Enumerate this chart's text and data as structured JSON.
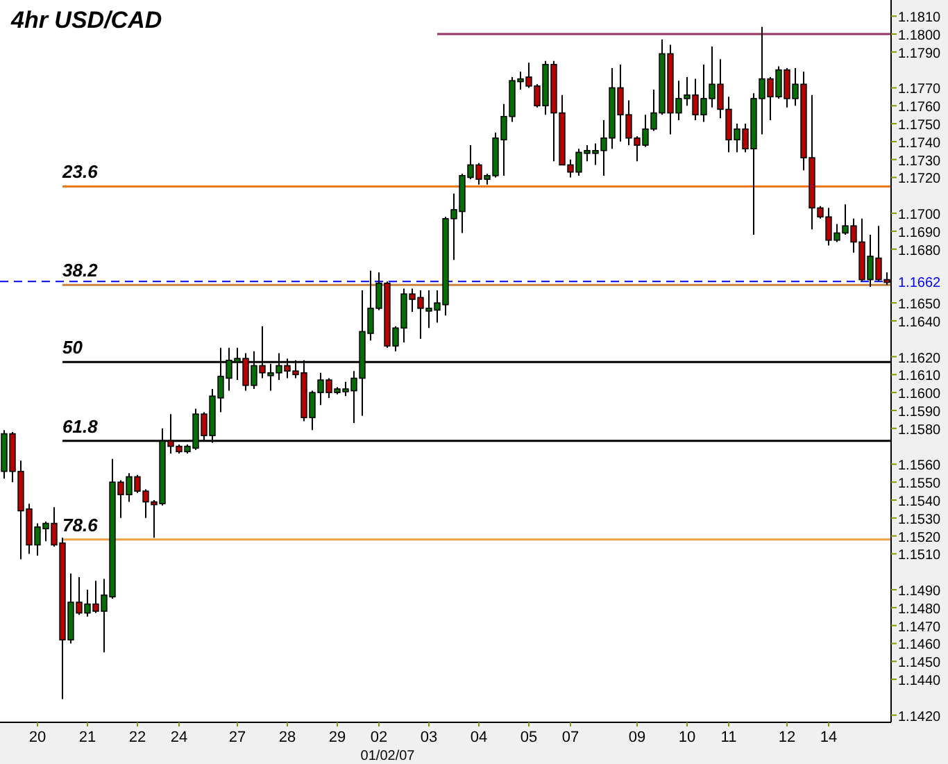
{
  "chart_data": {
    "type": "candlestick",
    "title": "4hr USD/CAD",
    "categories": [
      null,
      null,
      null,
      null,
      "20",
      null,
      null,
      null,
      null,
      null,
      "21",
      null,
      null,
      null,
      null,
      null,
      "22",
      null,
      null,
      null,
      null,
      "24",
      null,
      null,
      null,
      null,
      null,
      null,
      "27",
      null,
      null,
      null,
      null,
      null,
      "28",
      null,
      null,
      null,
      null,
      null,
      "29",
      null,
      null,
      null,
      null,
      "02",
      null,
      null,
      null,
      null,
      null,
      "03",
      null,
      null,
      null,
      null,
      null,
      "04",
      null,
      null,
      null,
      null,
      null,
      "05",
      null,
      null,
      null,
      null,
      "07",
      null,
      null,
      null,
      null,
      null,
      null,
      null,
      "09",
      null,
      null,
      null,
      null,
      null,
      "10",
      null,
      null,
      null,
      null,
      "11",
      null,
      null,
      null,
      null,
      null,
      null,
      "12",
      null,
      null,
      null,
      null,
      "14",
      null,
      null,
      null,
      null,
      null,
      null,
      null
    ],
    "ohlc": [
      [
        1.1556,
        1.1579,
        1.1552,
        1.1577
      ],
      [
        1.1577,
        1.1578,
        1.155,
        1.1556
      ],
      [
        1.1556,
        1.1562,
        1.1507,
        1.1534
      ],
      [
        1.1535,
        1.1538,
        1.151,
        1.1515
      ],
      [
        1.1515,
        1.1527,
        1.1509,
        1.1525
      ],
      [
        1.1524,
        1.1528,
        1.1517,
        1.1527
      ],
      [
        1.1527,
        1.1536,
        1.1514,
        1.1515
      ],
      [
        1.1516,
        1.1519,
        1.1429,
        1.1462
      ],
      [
        1.1462,
        1.1499,
        1.146,
        1.1483
      ],
      [
        1.1483,
        1.1497,
        1.1476,
        1.1477
      ],
      [
        1.1477,
        1.149,
        1.1475,
        1.1482
      ],
      [
        1.1482,
        1.1495,
        1.1477,
        1.1478
      ],
      [
        1.1478,
        1.1496,
        1.1455,
        1.1487
      ],
      [
        1.1486,
        1.1563,
        1.1485,
        1.155
      ],
      [
        1.155,
        1.1551,
        1.153,
        1.1543
      ],
      [
        1.1543,
        1.1555,
        1.1539,
        1.1553
      ],
      [
        1.1553,
        1.1554,
        1.1544,
        1.1545
      ],
      [
        1.1545,
        1.1546,
        1.153,
        1.1539
      ],
      [
        1.1539,
        1.154,
        1.1519,
        1.1538
      ],
      [
        1.1538,
        1.158,
        1.1537,
        1.1573
      ],
      [
        1.1573,
        1.1588,
        1.1566,
        1.157
      ],
      [
        1.157,
        1.1571,
        1.1566,
        1.1567
      ],
      [
        1.1567,
        1.1571,
        1.1566,
        1.157
      ],
      [
        1.1569,
        1.1591,
        1.1568,
        1.1588
      ],
      [
        1.1588,
        1.1589,
        1.1573,
        1.1576
      ],
      [
        1.1576,
        1.1602,
        1.1572,
        1.1598
      ],
      [
        1.1597,
        1.1625,
        1.1589,
        1.1609
      ],
      [
        1.1608,
        1.1625,
        1.1601,
        1.1618
      ],
      [
        1.1617,
        1.1625,
        1.1607,
        1.1619
      ],
      [
        1.1619,
        1.1622,
        1.1601,
        1.1604
      ],
      [
        1.1604,
        1.1623,
        1.1602,
        1.1615
      ],
      [
        1.1615,
        1.1637,
        1.1608,
        1.1611
      ],
      [
        1.1611,
        1.1616,
        1.1601,
        1.1611
      ],
      [
        1.1611,
        1.1622,
        1.1607,
        1.1615
      ],
      [
        1.1615,
        1.1619,
        1.1608,
        1.1612
      ],
      [
        1.1612,
        1.1618,
        1.1608,
        1.161
      ],
      [
        1.1611,
        1.1618,
        1.1584,
        1.1586
      ],
      [
        1.1586,
        1.1601,
        1.1579,
        1.16
      ],
      [
        1.16,
        1.1611,
        1.1593,
        1.1607
      ],
      [
        1.1607,
        1.1608,
        1.1597,
        1.16
      ],
      [
        1.16,
        1.1603,
        1.1599,
        1.1602
      ],
      [
        1.1602,
        1.1606,
        1.1598,
        1.1602
      ],
      [
        1.1601,
        1.1612,
        1.1583,
        1.1608
      ],
      [
        1.1608,
        1.1657,
        1.1587,
        1.1634
      ],
      [
        1.1633,
        1.1668,
        1.1629,
        1.1647
      ],
      [
        1.1647,
        1.1667,
        1.1646,
        1.1661
      ],
      [
        1.1661,
        1.1662,
        1.1625,
        1.1626
      ],
      [
        1.1626,
        1.1637,
        1.1623,
        1.1636
      ],
      [
        1.1636,
        1.1658,
        1.1628,
        1.1655
      ],
      [
        1.1655,
        1.1658,
        1.1645,
        1.1652
      ],
      [
        1.1653,
        1.1657,
        1.163,
        1.1647
      ],
      [
        1.1647,
        1.1657,
        1.1636,
        1.1647
      ],
      [
        1.1646,
        1.1657,
        1.1639,
        1.165
      ],
      [
        1.1649,
        1.1698,
        1.1643,
        1.1697
      ],
      [
        1.1697,
        1.1711,
        1.1674,
        1.1702
      ],
      [
        1.1701,
        1.1722,
        1.1689,
        1.1721
      ],
      [
        1.172,
        1.1738,
        1.1719,
        1.1727
      ],
      [
        1.1727,
        1.1728,
        1.1716,
        1.1719
      ],
      [
        1.1719,
        1.1722,
        1.1716,
        1.1721
      ],
      [
        1.1721,
        1.1745,
        1.172,
        1.1742
      ],
      [
        1.1741,
        1.1761,
        1.1721,
        1.1754
      ],
      [
        1.1754,
        1.1776,
        1.1751,
        1.1774
      ],
      [
        1.1774,
        1.1779,
        1.1769,
        1.1775
      ],
      [
        1.1776,
        1.1784,
        1.177,
        1.1771
      ],
      [
        1.1771,
        1.1772,
        1.1759,
        1.176
      ],
      [
        1.176,
        1.1785,
        1.1755,
        1.1783
      ],
      [
        1.1783,
        1.1785,
        1.1729,
        1.1756
      ],
      [
        1.1756,
        1.1766,
        1.1727,
        1.1727
      ],
      [
        1.1727,
        1.173,
        1.172,
        1.1723
      ],
      [
        1.1723,
        1.1736,
        1.1721,
        1.1734
      ],
      [
        1.1735,
        1.1738,
        1.1729,
        1.1735
      ],
      [
        1.1735,
        1.1739,
        1.1727,
        1.1735
      ],
      [
        1.1735,
        1.1752,
        1.1721,
        1.1742
      ],
      [
        1.1742,
        1.1781,
        1.1736,
        1.177
      ],
      [
        1.177,
        1.1783,
        1.174,
        1.1755
      ],
      [
        1.1755,
        1.1763,
        1.1738,
        1.1742
      ],
      [
        1.1742,
        1.1743,
        1.1729,
        1.1738
      ],
      [
        1.1738,
        1.1755,
        1.1737,
        1.1747
      ],
      [
        1.1747,
        1.1769,
        1.1746,
        1.1756
      ],
      [
        1.1756,
        1.1797,
        1.1755,
        1.1789
      ],
      [
        1.1789,
        1.1794,
        1.1744,
        1.1756
      ],
      [
        1.1756,
        1.1774,
        1.1752,
        1.1764
      ],
      [
        1.1764,
        1.1776,
        1.176,
        1.1766
      ],
      [
        1.1766,
        1.1775,
        1.1752,
        1.1755
      ],
      [
        1.1755,
        1.1783,
        1.1751,
        1.1764
      ],
      [
        1.1764,
        1.1793,
        1.1759,
        1.1772
      ],
      [
        1.1772,
        1.1786,
        1.1753,
        1.1758
      ],
      [
        1.1758,
        1.1765,
        1.1734,
        1.1741
      ],
      [
        1.1741,
        1.175,
        1.1734,
        1.1747
      ],
      [
        1.1747,
        1.175,
        1.1734,
        1.1736
      ],
      [
        1.1736,
        1.1767,
        1.1688,
        1.1764
      ],
      [
        1.1764,
        1.1804,
        1.1744,
        1.1775
      ],
      [
        1.1775,
        1.1776,
        1.1752,
        1.1765
      ],
      [
        1.1765,
        1.1782,
        1.1764,
        1.178
      ],
      [
        1.178,
        1.1781,
        1.1759,
        1.1764
      ],
      [
        1.1764,
        1.1781,
        1.176,
        1.1772
      ],
      [
        1.1772,
        1.1779,
        1.1724,
        1.1731
      ],
      [
        1.1731,
        1.1766,
        1.1691,
        1.1703
      ],
      [
        1.1703,
        1.1704,
        1.1697,
        1.1698
      ],
      [
        1.1698,
        1.1703,
        1.1682,
        1.1685
      ],
      [
        1.1685,
        1.1694,
        1.1684,
        1.1689
      ],
      [
        1.1689,
        1.1705,
        1.1688,
        1.1693
      ],
      [
        1.1693,
        1.1697,
        1.1678,
        1.1684
      ],
      [
        1.1684,
        1.1697,
        1.1662,
        1.1663
      ],
      [
        1.1663,
        1.1688,
        1.1659,
        1.1676
      ],
      [
        1.1675,
        1.1693,
        1.1662,
        1.1663
      ],
      [
        1.1663,
        1.1667,
        1.166,
        1.1662
      ]
    ],
    "ylim": [
      1.1416,
      1.1819
    ],
    "yticks": [
      {
        "value": 1.142,
        "label": "1.1420"
      },
      {
        "value": 1.144,
        "label": "1.1440"
      },
      {
        "value": 1.145,
        "label": "1.1450"
      },
      {
        "value": 1.146,
        "label": "1.1460"
      },
      {
        "value": 1.147,
        "label": "1.1470"
      },
      {
        "value": 1.148,
        "label": "1.1480"
      },
      {
        "value": 1.149,
        "label": "1.1490"
      },
      {
        "value": 1.151,
        "label": "1.1510"
      },
      {
        "value": 1.152,
        "label": "1.1520"
      },
      {
        "value": 1.153,
        "label": "1.1530"
      },
      {
        "value": 1.154,
        "label": "1.1540"
      },
      {
        "value": 1.155,
        "label": "1.1550"
      },
      {
        "value": 1.156,
        "label": "1.1560"
      },
      {
        "value": 1.158,
        "label": "1.1580"
      },
      {
        "value": 1.159,
        "label": "1.1590"
      },
      {
        "value": 1.16,
        "label": "1.1600"
      },
      {
        "value": 1.161,
        "label": "1.1610"
      },
      {
        "value": 1.162,
        "label": "1.1620"
      },
      {
        "value": 1.164,
        "label": "1.1640"
      },
      {
        "value": 1.165,
        "label": "1.1650"
      },
      {
        "value": 1.168,
        "label": "1.1680"
      },
      {
        "value": 1.169,
        "label": "1.1690"
      },
      {
        "value": 1.17,
        "label": "1.1700"
      },
      {
        "value": 1.172,
        "label": "1.1720"
      },
      {
        "value": 1.173,
        "label": "1.1730"
      },
      {
        "value": 1.174,
        "label": "1.1740"
      },
      {
        "value": 1.175,
        "label": "1.1750"
      },
      {
        "value": 1.176,
        "label": "1.1760"
      },
      {
        "value": 1.177,
        "label": "1.1770"
      },
      {
        "value": 1.179,
        "label": "1.1790"
      },
      {
        "value": 1.18,
        "label": "1.1800"
      },
      {
        "value": 1.181,
        "label": "1.1810"
      }
    ],
    "ref_lines": [
      {
        "axis": "y",
        "value": 1.18,
        "label": null,
        "color": "#993366"
      },
      {
        "axis": "y",
        "value": 1.1715,
        "label": null,
        "color": "#f07818"
      },
      {
        "axis": "y",
        "value": 1.1662,
        "label": "1.1662",
        "color": "#0000ff",
        "line_style": "dashed"
      },
      {
        "axis": "y",
        "value": 1.166,
        "label": null,
        "color": "#c8843c"
      },
      {
        "axis": "y",
        "value": 1.1617,
        "label": null,
        "color": "#000000"
      },
      {
        "axis": "y",
        "value": 1.1573,
        "label": null,
        "color": "#000000"
      },
      {
        "axis": "y",
        "value": 1.1518,
        "label": null,
        "color": "#f0a040"
      }
    ],
    "annotations": [
      "01/02/07",
      {
        "text": "23.6",
        "y": 1.1715
      },
      {
        "text": "38.2",
        "y": 1.166
      },
      {
        "text": "50",
        "y": 1.1617
      },
      {
        "text": "61.8",
        "y": 1.1573
      },
      {
        "text": "78.6",
        "y": 1.1518
      }
    ]
  }
}
